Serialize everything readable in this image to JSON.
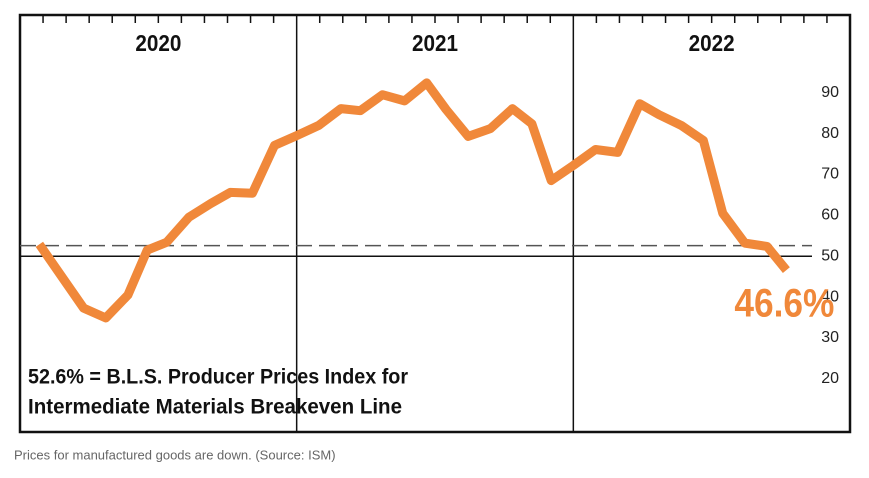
{
  "chart_data": {
    "type": "line",
    "x": [
      2020.07,
      2020.23,
      2020.31,
      2020.39,
      2020.46,
      2020.53,
      2020.61,
      2020.69,
      2020.76,
      2020.84,
      2020.92,
      2021.0,
      2021.08,
      2021.16,
      2021.23,
      2021.31,
      2021.39,
      2021.47,
      2021.54,
      2021.62,
      2021.7,
      2021.78,
      2021.85,
      2021.92,
      2022.0,
      2022.08,
      2022.16,
      2022.24,
      2022.31,
      2022.39,
      2022.47,
      2022.54,
      2022.62,
      2022.7,
      2022.77
    ],
    "series": [
      {
        "color": "#f0883a",
        "values": [
          52.9,
          37.3,
          34.9,
          40.5,
          51.5,
          53.4,
          59.5,
          62.9,
          65.6,
          65.4,
          77.1,
          79.5,
          82,
          86.1,
          85.6,
          89.5,
          88,
          92.4,
          85.9,
          79.3,
          81.2,
          86.1,
          82.4,
          68.5,
          72.2,
          76.1,
          75.4,
          87.3,
          84.6,
          82,
          78.3,
          60.5,
          53.2,
          52.4,
          46.6
        ],
        "value_labels": [
          null,
          null,
          null,
          null,
          null,
          null,
          null,
          null,
          null,
          null,
          null,
          null,
          null,
          null,
          null,
          null,
          null,
          null,
          null,
          null,
          null,
          null,
          null,
          null,
          null,
          null,
          null,
          null,
          null,
          null,
          null,
          null,
          null,
          null,
          "46.6%"
        ]
      }
    ],
    "xlim": [
      2020,
      2023
    ],
    "xticks": [
      2021,
      2022
    ],
    "year_labels": [
      {
        "value": 2020.5,
        "label": "2020"
      },
      {
        "value": 2021.5,
        "label": "2021"
      },
      {
        "value": 2022.5,
        "label": "2022"
      }
    ],
    "ylim": [
      7,
      109
    ],
    "yticks": [
      20,
      30,
      40,
      50,
      60,
      70,
      80,
      90
    ],
    "yaxis_side": "right",
    "grid": false,
    "reference_lines": [
      {
        "value": 50,
        "style": "solid"
      },
      {
        "value": 52.6,
        "style": "dashed"
      }
    ],
    "note": [
      "52.6% = B.L.S. Producer Prices Index for",
      "Intermediate Materials Breakeven Line"
    ],
    "caption": "Prices for manufactured goods are down. (Source: ISM)"
  }
}
